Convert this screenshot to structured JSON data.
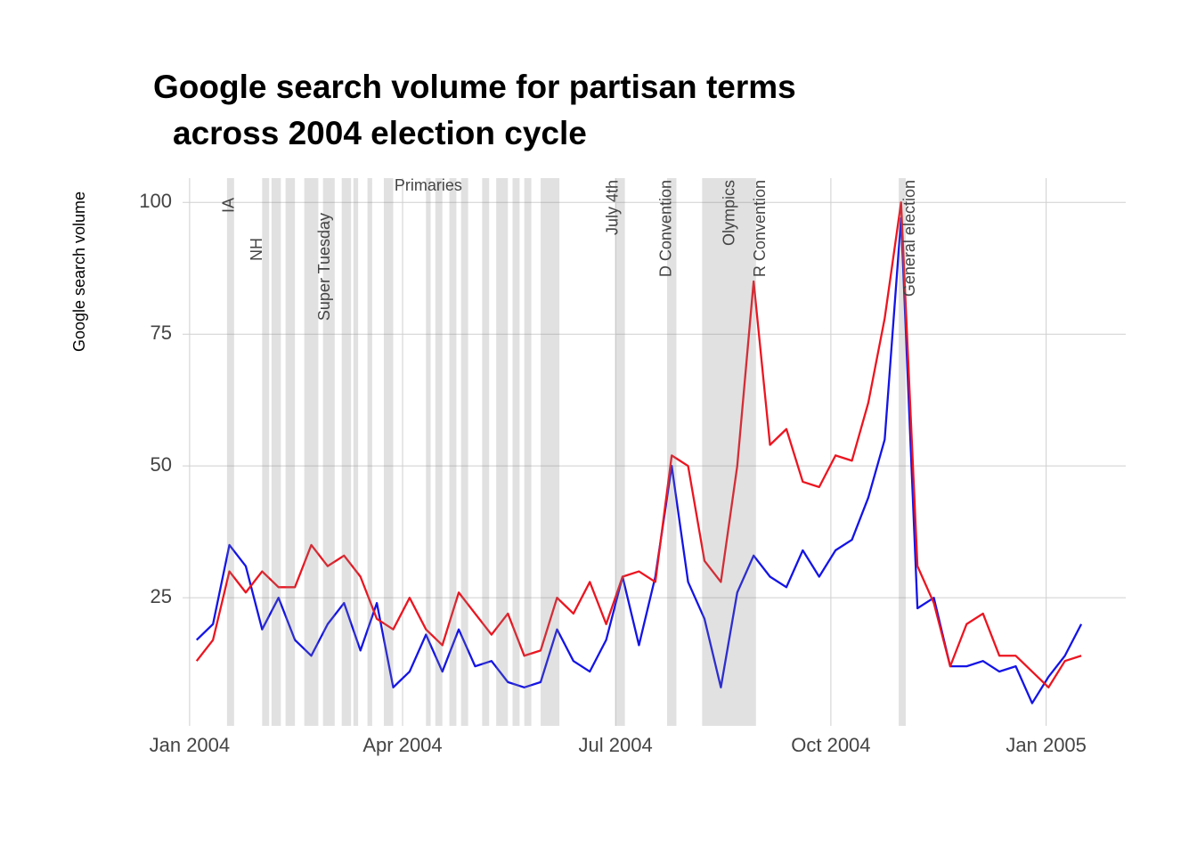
{
  "chart_data": {
    "type": "line",
    "title": [
      "Google search volume for partisan terms",
      "across 2004 election cycle"
    ],
    "ylabel": "Google search volume",
    "x": [
      "2004-01-04",
      "2004-01-11",
      "2004-01-18",
      "2004-01-25",
      "2004-02-01",
      "2004-02-08",
      "2004-02-15",
      "2004-02-22",
      "2004-02-29",
      "2004-03-07",
      "2004-03-14",
      "2004-03-21",
      "2004-03-28",
      "2004-04-04",
      "2004-04-11",
      "2004-04-18",
      "2004-04-25",
      "2004-05-02",
      "2004-05-09",
      "2004-05-16",
      "2004-05-23",
      "2004-05-30",
      "2004-06-06",
      "2004-06-13",
      "2004-06-20",
      "2004-06-27",
      "2004-07-04",
      "2004-07-11",
      "2004-07-18",
      "2004-07-25",
      "2004-08-01",
      "2004-08-08",
      "2004-08-15",
      "2004-08-22",
      "2004-08-29",
      "2004-09-05",
      "2004-09-12",
      "2004-09-19",
      "2004-09-26",
      "2004-10-03",
      "2004-10-10",
      "2004-10-17",
      "2004-10-24",
      "2004-10-31",
      "2004-11-07",
      "2004-11-14",
      "2004-11-21",
      "2004-11-28",
      "2004-12-05",
      "2004-12-12",
      "2004-12-19",
      "2004-12-26",
      "2005-01-02",
      "2005-01-09",
      "2005-01-16"
    ],
    "series": [
      {
        "color": "#1414e6",
        "values": [
          17,
          20,
          35,
          31,
          19,
          25,
          17,
          14,
          20,
          24,
          15,
          24,
          8,
          11,
          18,
          11,
          19,
          12,
          13,
          9,
          8,
          9,
          19,
          13,
          11,
          17,
          29,
          16,
          29,
          50,
          28,
          21,
          8,
          26,
          33,
          29,
          27,
          34,
          29,
          34,
          36,
          44,
          55,
          97,
          23,
          25,
          12,
          12,
          13,
          11,
          12,
          5,
          10,
          14,
          20
        ]
      },
      {
        "color": "#ec1520",
        "values": [
          13,
          17,
          30,
          26,
          30,
          27,
          27,
          35,
          31,
          33,
          29,
          21,
          19,
          25,
          19,
          16,
          26,
          22,
          18,
          22,
          14,
          15,
          25,
          22,
          28,
          20,
          29,
          30,
          28,
          52,
          50,
          32,
          28,
          50,
          85,
          54,
          57,
          47,
          46,
          52,
          51,
          62,
          78,
          100,
          31,
          24,
          12,
          20,
          22,
          14,
          14,
          11,
          8,
          13,
          14
        ]
      }
    ],
    "xlim": [
      "2003-12-29",
      "2005-02-04"
    ],
    "xticks": [
      {
        "value": "2004-01-01",
        "label": "Jan 2004"
      },
      {
        "value": "2004-04-01",
        "label": "Apr 2004"
      },
      {
        "value": "2004-07-01",
        "label": "Jul 2004"
      },
      {
        "value": "2004-10-01",
        "label": "Oct 2004"
      },
      {
        "value": "2005-01-01",
        "label": "Jan 2005"
      }
    ],
    "ylim": [
      0.7,
      104.6
    ],
    "yticks": [
      25,
      50,
      75,
      100
    ],
    "grid": true,
    "band_color": "rgba(128,128,128,0.24)",
    "bands": [
      [
        "2004-01-17",
        "2004-01-20"
      ],
      [
        "2004-02-01",
        "2004-02-04"
      ],
      [
        "2004-02-05",
        "2004-02-09"
      ],
      [
        "2004-02-11",
        "2004-02-15"
      ],
      [
        "2004-02-19",
        "2004-02-25"
      ],
      [
        "2004-02-27",
        "2004-03-03"
      ],
      [
        "2004-03-06",
        "2004-03-10"
      ],
      [
        "2004-03-11",
        "2004-03-13"
      ],
      [
        "2004-03-17",
        "2004-03-19"
      ],
      [
        "2004-03-24",
        "2004-03-28"
      ],
      [
        "2004-04-11",
        "2004-04-13"
      ],
      [
        "2004-04-15",
        "2004-04-18"
      ],
      [
        "2004-04-21",
        "2004-04-24"
      ],
      [
        "2004-04-26",
        "2004-04-29"
      ],
      [
        "2004-05-05",
        "2004-05-08"
      ],
      [
        "2004-05-11",
        "2004-05-16"
      ],
      [
        "2004-05-18",
        "2004-05-21"
      ],
      [
        "2004-05-23",
        "2004-05-26"
      ],
      [
        "2004-05-30",
        "2004-06-07"
      ],
      [
        "2004-07-01",
        "2004-07-05"
      ],
      [
        "2004-07-23",
        "2004-07-27"
      ],
      [
        "2004-08-07",
        "2004-08-30"
      ],
      [
        "2004-10-30",
        "2004-11-02"
      ]
    ],
    "annotations": [
      {
        "text": "IA",
        "x": "2004-01-18"
      },
      {
        "text": "NH",
        "x": "2004-01-30"
      },
      {
        "text": "Super Tuesday",
        "x": "2004-02-28"
      },
      {
        "text": "Primaries",
        "x": "2004-04-12"
      },
      {
        "text": "July 4th",
        "x": "2004-06-30"
      },
      {
        "text": "D Convention",
        "x": "2004-07-23"
      },
      {
        "text": "Olympics",
        "x": "2004-08-19"
      },
      {
        "text": "R Convention",
        "x": "2004-09-01"
      },
      {
        "text": "General election",
        "x": "2004-11-04"
      }
    ]
  }
}
